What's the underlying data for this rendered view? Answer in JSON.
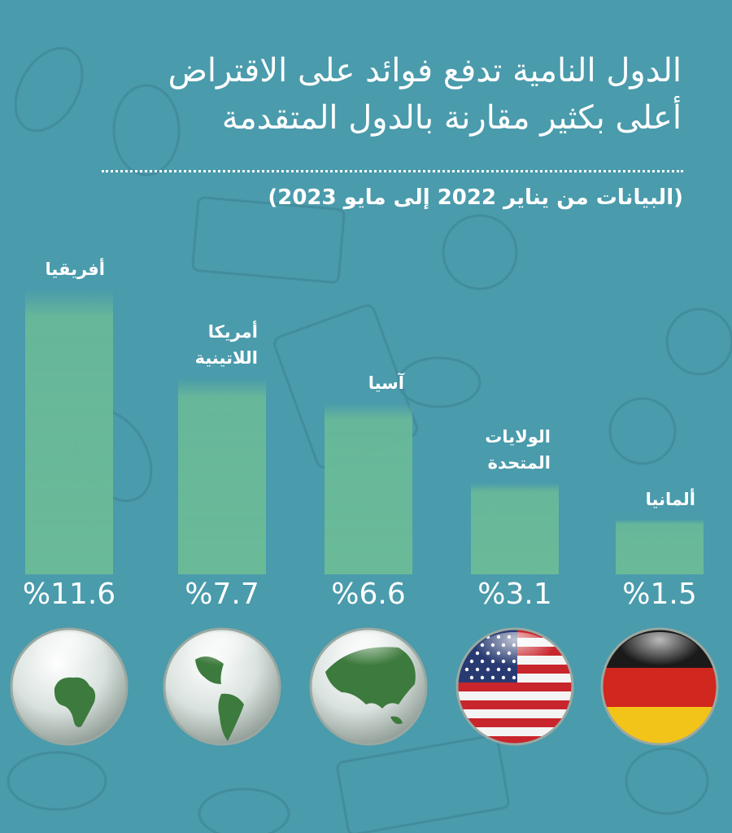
{
  "title_lines": [
    "الدول النامية تدفع فوائد على الاقتراض",
    "أعلى بكثير مقارنة بالدول المتقدمة"
  ],
  "subtitle": "(البيانات من يناير 2022 إلى مايو 2023)",
  "colors": {
    "background": "#4a9bac",
    "bar": "#6aba98",
    "text": "#ffffff"
  },
  "chart_data": {
    "type": "bar",
    "unit": "%",
    "categories": [
      "أفريقيا",
      "أمريكا اللاتينية",
      "آسيا",
      "الولايات المتحدة",
      "ألمانيا"
    ],
    "label_lines": [
      [
        "أفريقيا"
      ],
      [
        "أمريكا",
        "اللاتينية"
      ],
      [
        "آسيا"
      ],
      [
        "الولايات",
        "المتحدة"
      ],
      [
        "ألمانيا"
      ]
    ],
    "values": [
      11.6,
      7.7,
      6.6,
      3.1,
      1.5
    ],
    "value_labels": [
      "%11.6",
      "%7.7",
      "%6.6",
      "%3.1",
      "%1.5"
    ],
    "icons": [
      "globe-africa-icon",
      "globe-latin-america-icon",
      "globe-asia-icon",
      "us-flag-icon",
      "germany-flag-icon"
    ]
  }
}
